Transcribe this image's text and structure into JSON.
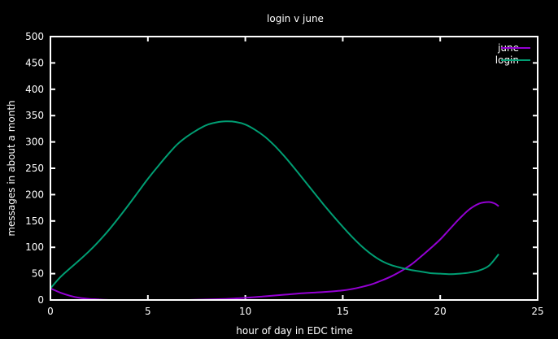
{
  "chart_data": {
    "type": "line",
    "title": "login v june",
    "xlabel": "hour of day in EDC time",
    "ylabel": "messages in about a month",
    "xlim": [
      0,
      25
    ],
    "ylim": [
      0,
      500
    ],
    "xticks": [
      0,
      5,
      10,
      15,
      20,
      25
    ],
    "yticks": [
      0,
      50,
      100,
      150,
      200,
      250,
      300,
      350,
      400,
      450,
      500
    ],
    "grid": false,
    "legend_position": "top-right",
    "series": [
      {
        "name": "june",
        "color": "#9400d3",
        "x": [
          0,
          0.5,
          1,
          1.5,
          2,
          2.5,
          3,
          4,
          5,
          6,
          7,
          8,
          9,
          10,
          11,
          12,
          13,
          14,
          15,
          15.5,
          16,
          16.5,
          17,
          17.5,
          18,
          18.5,
          19,
          19.5,
          20,
          20.5,
          21,
          21.5,
          22,
          22.5,
          22.8,
          23
        ],
        "y": [
          22,
          14,
          8,
          4,
          2,
          1,
          0,
          0,
          0,
          0,
          0,
          1,
          2,
          4,
          7,
          10,
          13,
          15,
          18,
          21,
          25,
          30,
          37,
          45,
          55,
          67,
          82,
          98,
          115,
          135,
          155,
          172,
          183,
          186,
          183,
          178
        ]
      },
      {
        "name": "login",
        "color": "#009e73",
        "x": [
          0,
          0.5,
          1,
          1.5,
          2,
          2.5,
          3,
          3.5,
          4,
          4.5,
          5,
          5.5,
          6,
          6.5,
          7,
          7.5,
          8,
          8.5,
          9,
          9.5,
          10,
          10.5,
          11,
          11.5,
          12,
          12.5,
          13,
          13.5,
          14,
          14.5,
          15,
          15.5,
          16,
          16.5,
          17,
          17.5,
          18,
          18.5,
          19,
          19.5,
          20,
          20.5,
          21,
          21.5,
          22,
          22.5,
          23
        ],
        "y": [
          22,
          43,
          60,
          76,
          93,
          112,
          133,
          156,
          180,
          205,
          230,
          253,
          275,
          295,
          310,
          322,
          332,
          337,
          339,
          338,
          333,
          323,
          310,
          293,
          273,
          251,
          228,
          205,
          182,
          160,
          139,
          119,
          101,
          86,
          74,
          66,
          61,
          57,
          54,
          51,
          50,
          49,
          50,
          52,
          56,
          65,
          87
        ]
      }
    ]
  }
}
